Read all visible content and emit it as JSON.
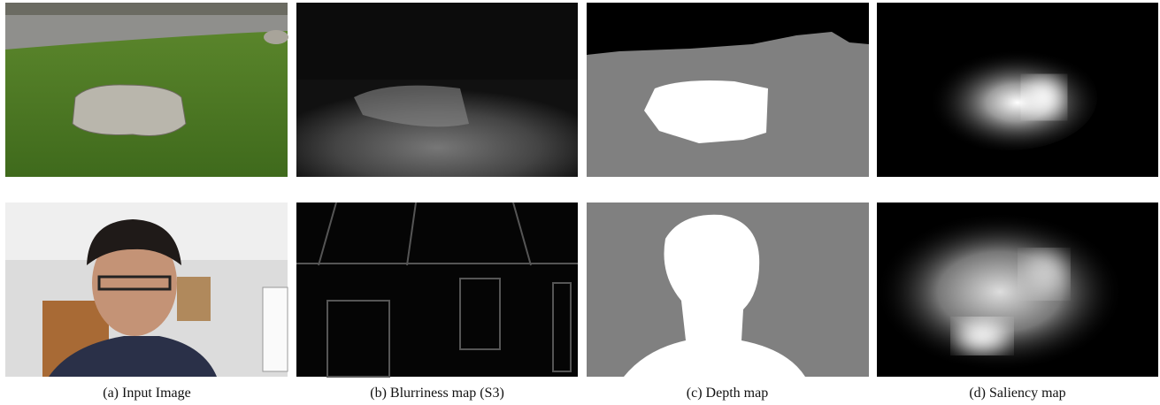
{
  "captions": [
    "(a) Input Image",
    "(b) Blurriness map (S3)",
    "(c) Depth map",
    "(d) Saliency map"
  ]
}
